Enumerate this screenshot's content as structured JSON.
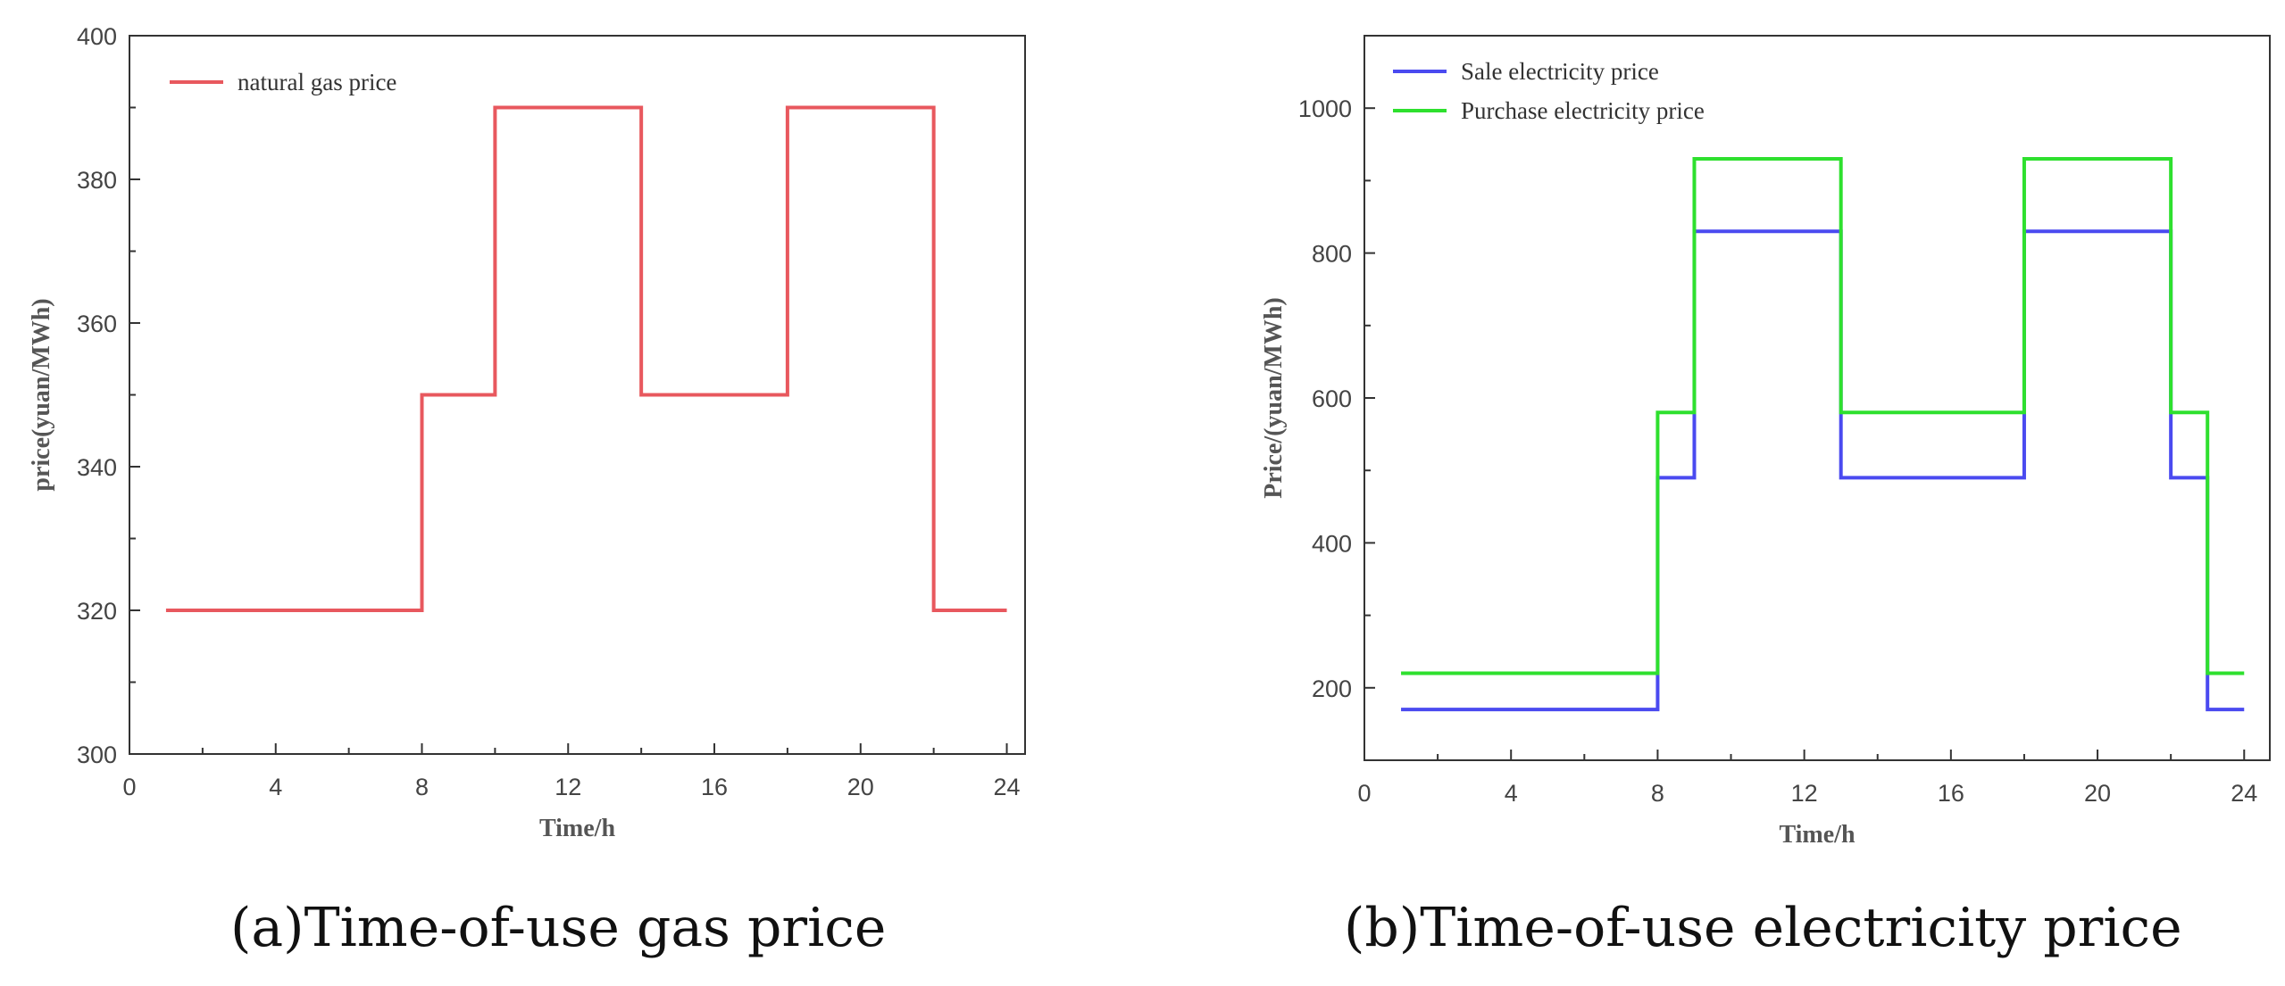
{
  "chart_data": [
    {
      "type": "line",
      "step": "post",
      "caption": "(a)Time-of-use gas price",
      "title": "",
      "xlabel": "Time/h",
      "ylabel": "price(yuan/MWh)",
      "xlim": [
        0,
        24.5
      ],
      "ylim": [
        300,
        400
      ],
      "xticks": [
        0,
        4,
        8,
        12,
        16,
        20,
        24
      ],
      "yticks": [
        300,
        320,
        340,
        360,
        380,
        400
      ],
      "legend_position": "top-left",
      "grid": false,
      "series": [
        {
          "name": "natural gas price",
          "color": "#e8585e",
          "x": [
            1,
            8,
            10,
            14,
            18,
            22,
            24
          ],
          "y": [
            320,
            350,
            390,
            350,
            390,
            320,
            320
          ]
        }
      ]
    },
    {
      "type": "line",
      "step": "post",
      "caption": "(b)Time-of-use electricity price",
      "title": "",
      "xlabel": "Time/h",
      "ylabel": "Price/(yuan/MWh)",
      "xlim": [
        0,
        24.7
      ],
      "ylim": [
        100,
        1100
      ],
      "xticks": [
        0,
        4,
        8,
        12,
        16,
        20,
        24
      ],
      "yticks": [
        200,
        400,
        600,
        800,
        1000
      ],
      "legend_position": "top-left",
      "grid": false,
      "series": [
        {
          "name": "Sale electricity price",
          "color": "#4a4af0",
          "x": [
            1,
            8,
            9,
            13,
            18,
            22,
            23,
            24
          ],
          "y": [
            170,
            490,
            830,
            490,
            830,
            490,
            170,
            170
          ]
        },
        {
          "name": "Purchase electricity price",
          "color": "#2ee02e",
          "x": [
            1,
            8,
            9,
            13,
            18,
            22,
            23,
            24
          ],
          "y": [
            220,
            580,
            930,
            580,
            930,
            580,
            220,
            220
          ]
        }
      ]
    }
  ]
}
